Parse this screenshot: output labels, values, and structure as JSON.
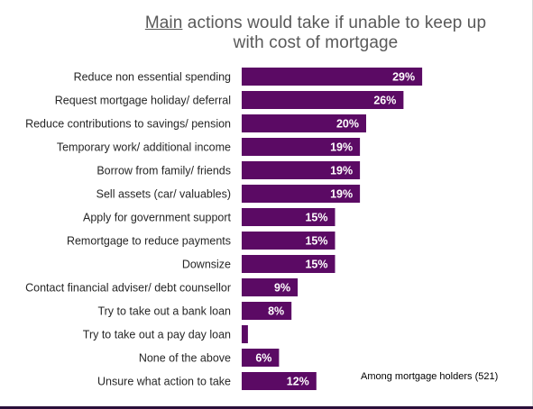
{
  "title": {
    "underlined": "Main",
    "rest_line1": " actions would take if unable to keep up",
    "line2": "with cost of mortgage"
  },
  "footnote": "Among mortgage holders (521)",
  "colors": {
    "bar": "#5b0a64",
    "value_label": "#ffffff",
    "category_label": "#262626",
    "title": "#595959"
  },
  "chart_data": {
    "type": "bar",
    "orientation": "horizontal",
    "title": "Main actions would take if unable to keep up with cost of mortgage",
    "categories": [
      "Reduce non essential spending",
      "Request mortgage holiday/ deferral",
      "Reduce contributions to savings/ pension",
      "Temporary work/ additional income",
      "Borrow from family/ friends",
      "Sell assets (car/ valuables)",
      "Apply for government support",
      "Remortgage to reduce payments",
      "Downsize",
      "Contact financial adviser/ debt counsellor",
      "Try to take out a bank loan",
      "Try to take out a pay day loan",
      "None of the above",
      "Unsure what action to take"
    ],
    "values": [
      29,
      26,
      20,
      19,
      19,
      19,
      15,
      15,
      15,
      9,
      8,
      1,
      6,
      12
    ],
    "value_labels": [
      "29%",
      "26%",
      "20%",
      "19%",
      "19%",
      "19%",
      "15%",
      "15%",
      "15%",
      "9%",
      "8%",
      "",
      "6%",
      "12%"
    ],
    "unit": "%",
    "xlim": [
      0,
      40
    ],
    "grid": false,
    "legend": "none"
  }
}
